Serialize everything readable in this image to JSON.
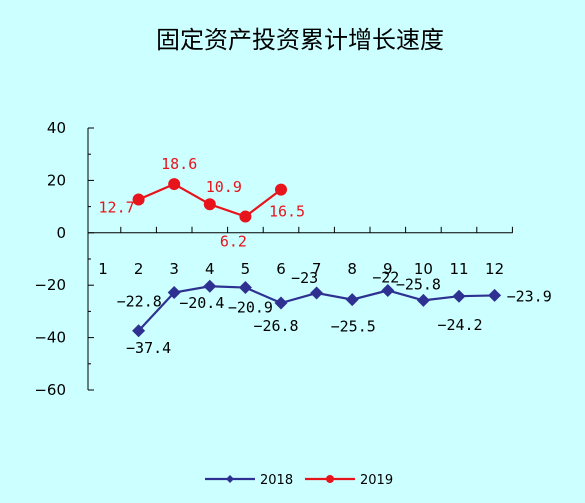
{
  "chart_data": {
    "type": "line",
    "title": "固定资产投资累计增长速度",
    "xlabel": "",
    "ylabel": "",
    "categories": [
      "1",
      "2",
      "3",
      "4",
      "5",
      "6",
      "7",
      "8",
      "9",
      "10",
      "11",
      "12"
    ],
    "y_ticks": [
      "40",
      "20",
      "0",
      "−20",
      "−40",
      "−60"
    ],
    "ylim": [
      -60,
      40
    ],
    "grid": false,
    "legend_position": "bottom",
    "series": [
      {
        "name": "2018",
        "color": "#2e3192",
        "marker": "diamond",
        "values": [
          null,
          -37.4,
          -22.8,
          -20.4,
          -20.9,
          -26.8,
          -23,
          -25.5,
          -22,
          -25.8,
          -24.2,
          -23.9
        ],
        "labels": [
          null,
          "−37.4",
          "−22.8",
          "−20.4",
          "−20.9",
          "−26.8",
          "−23",
          "−25.5",
          "−22",
          "−25.8",
          "−24.2",
          "−23.9"
        ]
      },
      {
        "name": "2019",
        "color": "#e8141c",
        "marker": "circle",
        "values": [
          null,
          12.7,
          18.6,
          10.9,
          6.2,
          16.5,
          null,
          null,
          null,
          null,
          null,
          null
        ],
        "labels": [
          null,
          "12.7",
          "18.6",
          "10.9",
          "6.2",
          "16.5",
          null,
          null,
          null,
          null,
          null,
          null
        ]
      }
    ]
  }
}
